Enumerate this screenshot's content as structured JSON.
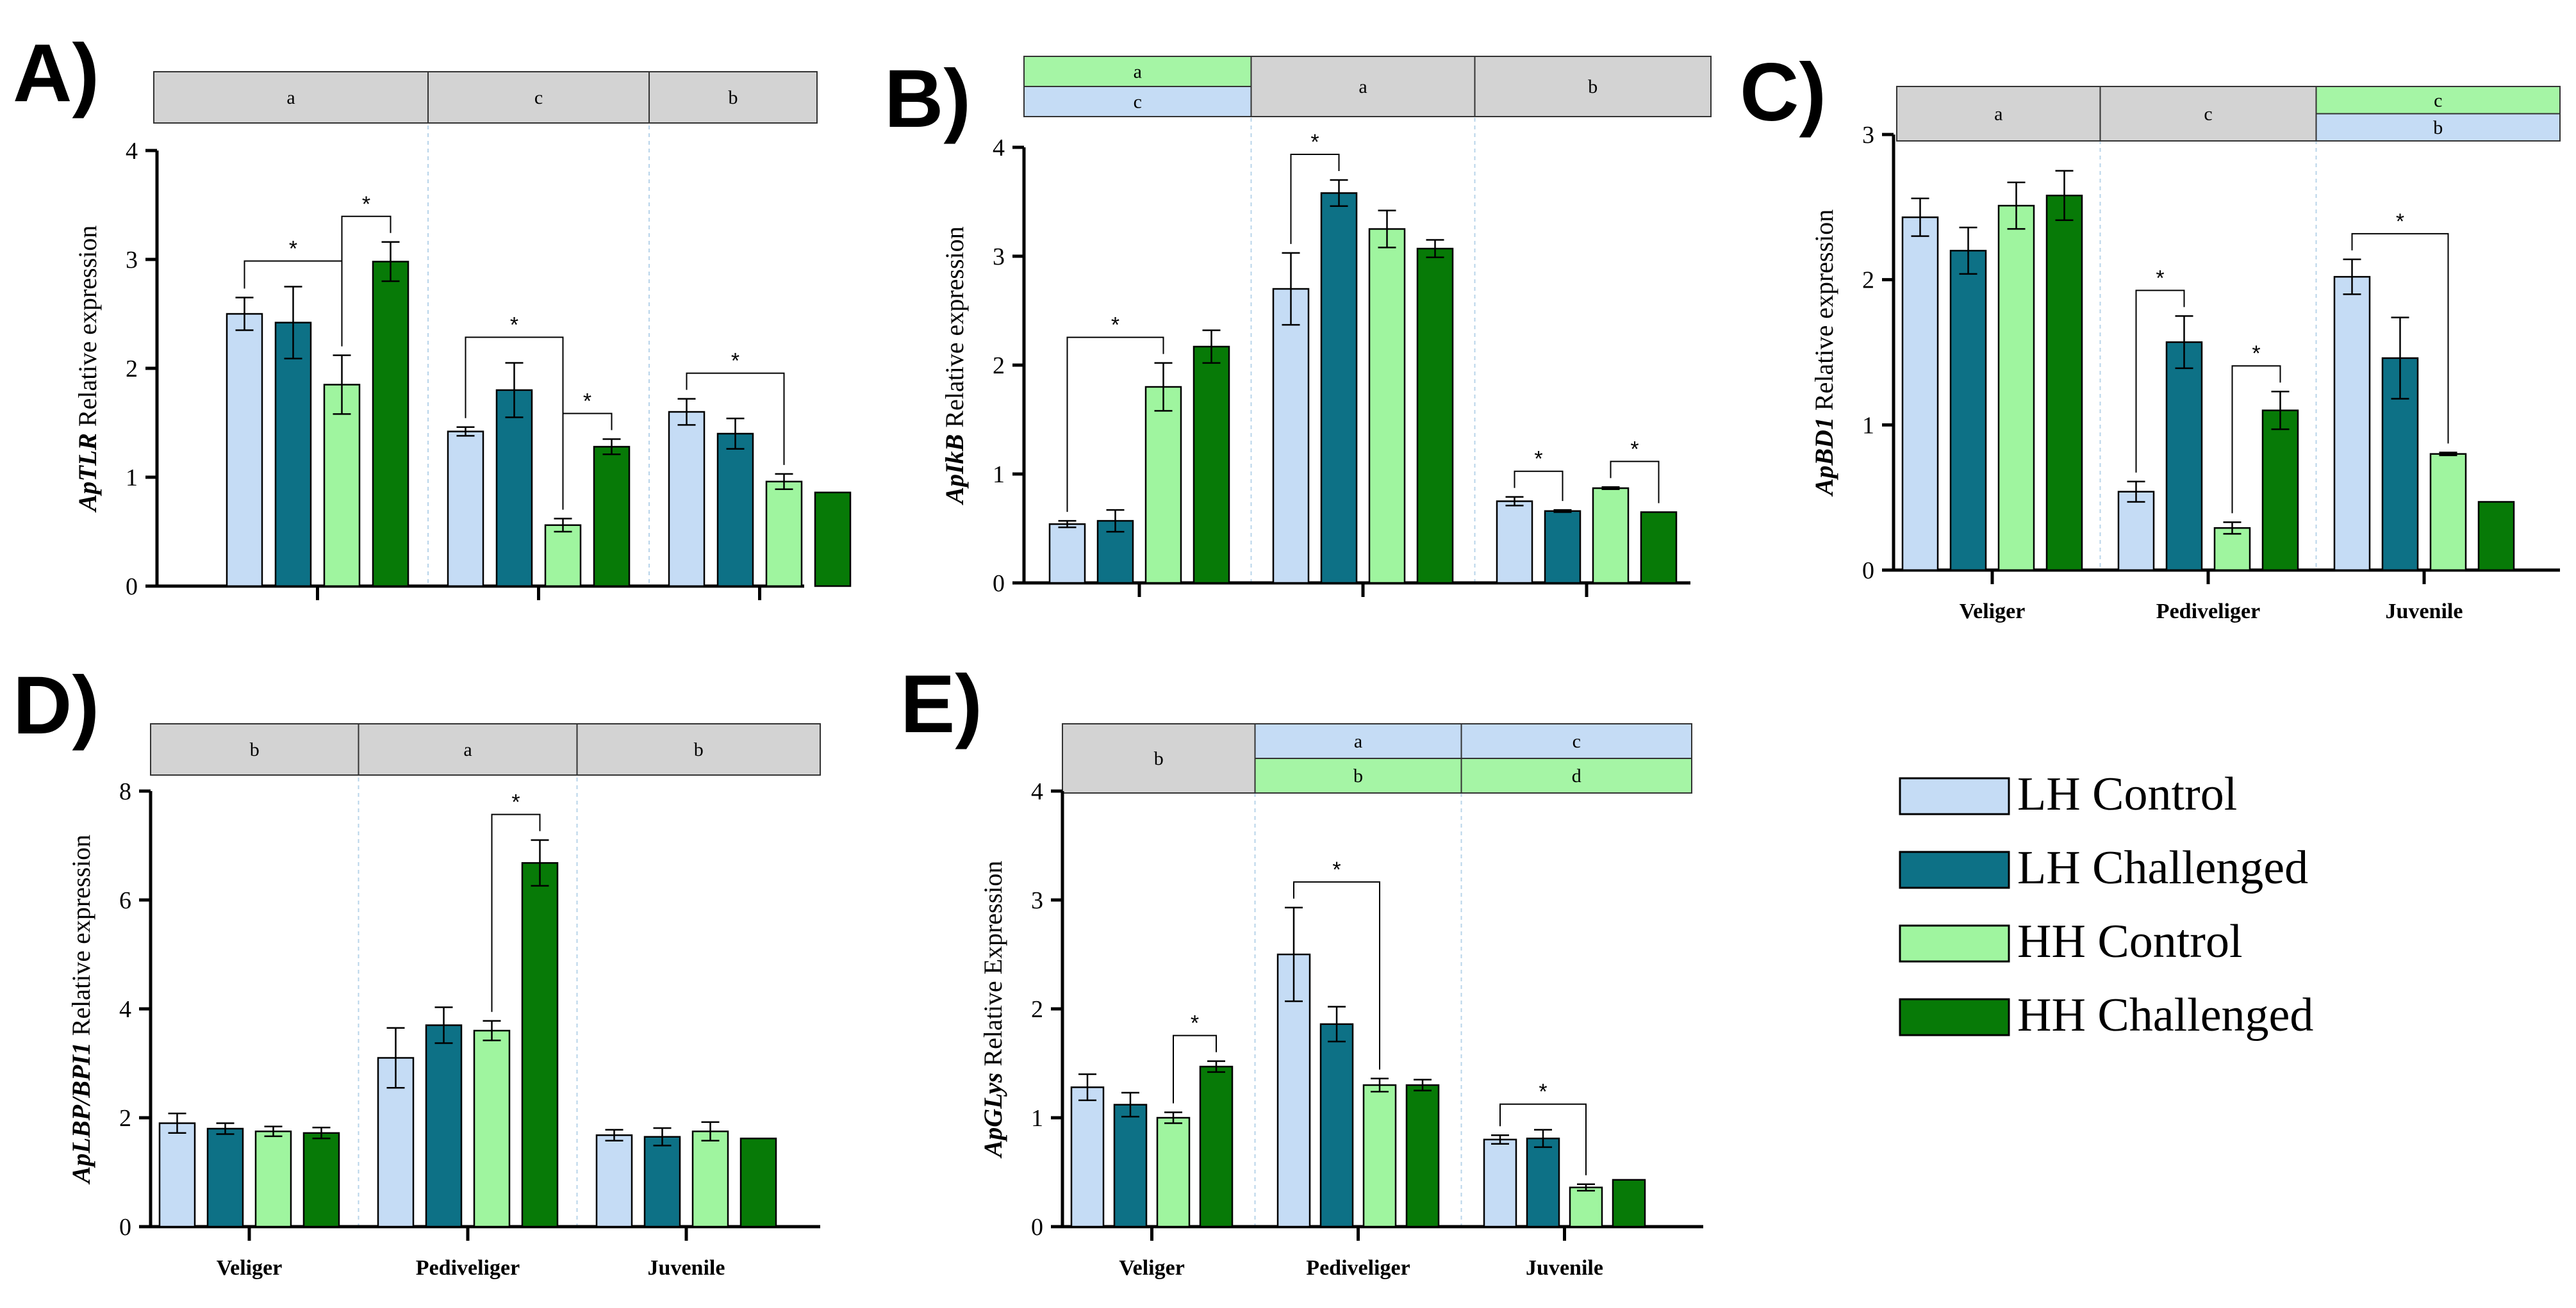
{
  "colors": {
    "LH Control": "#c5dcf5",
    "LH Challenged": "#0d7186",
    "HH Control": "#9ff59f",
    "HH Challenged": "#077a07",
    "box_gray": "#d3d3d3",
    "box_blue": "#c5dcf5",
    "box_green": "#a5f5a5",
    "divider": "#b8d4ea"
  },
  "legend": [
    {
      "label": "LH Control"
    },
    {
      "label": "LH Challenged"
    },
    {
      "label": "HH Control"
    },
    {
      "label": "HH Challenged"
    }
  ],
  "chart_data": [
    {
      "panel": "A)",
      "type": "bar",
      "gene": "ApTLR",
      "ylabel_rest": " Relative expression",
      "ylim": [
        0,
        4
      ],
      "yticks": [
        "0",
        "1",
        "2",
        "3",
        "4"
      ],
      "categories": [
        "",
        "",
        ""
      ],
      "series": [
        {
          "name": "LH Control",
          "values": [
            2.5,
            1.42,
            1.6
          ],
          "errors": [
            0.15,
            0.04,
            0.12
          ]
        },
        {
          "name": "LH Challenged",
          "values": [
            2.42,
            1.8,
            1.4
          ],
          "errors": [
            0.33,
            0.25,
            0.14
          ]
        },
        {
          "name": "HH Control",
          "values": [
            1.85,
            0.56,
            0.96
          ],
          "errors": [
            0.27,
            0.06,
            0.07
          ]
        },
        {
          "name": "HH Challenged",
          "values": [
            2.98,
            1.28,
            0.86
          ],
          "errors": [
            0.18,
            0.07,
            0.0
          ]
        }
      ],
      "letters": [
        [
          {
            "text": "a",
            "color": "gray"
          }
        ],
        [
          {
            "text": "c",
            "color": "gray"
          }
        ],
        [
          {
            "text": "b",
            "color": "gray"
          }
        ]
      ],
      "significance": [
        {
          "group": 0,
          "from": 0,
          "to": 2,
          "star": "*"
        },
        {
          "group": 0,
          "from": 2,
          "to": 3,
          "star": "*"
        },
        {
          "group": 1,
          "from": 0,
          "to": 2,
          "star": "*"
        },
        {
          "group": 1,
          "from": 2,
          "to": 3,
          "star": "*"
        },
        {
          "group": 2,
          "from": 0,
          "to": 2,
          "star": "*"
        }
      ]
    },
    {
      "panel": "B)",
      "type": "bar",
      "gene": "ApIkB",
      "ylabel_rest": " Relative expression",
      "ylim": [
        0,
        4
      ],
      "yticks": [
        "0",
        "1",
        "2",
        "3",
        "4"
      ],
      "categories": [
        "",
        "",
        ""
      ],
      "series": [
        {
          "name": "LH Control",
          "values": [
            0.54,
            2.7,
            0.75
          ],
          "errors": [
            0.03,
            0.33,
            0.04
          ]
        },
        {
          "name": "LH Challenged",
          "values": [
            0.57,
            3.58,
            0.66
          ],
          "errors": [
            0.1,
            0.12,
            0.01
          ]
        },
        {
          "name": "HH Control",
          "values": [
            1.8,
            3.25,
            0.87
          ],
          "errors": [
            0.22,
            0.17,
            0.01
          ]
        },
        {
          "name": "HH Challenged",
          "values": [
            2.17,
            3.07,
            0.65
          ],
          "errors": [
            0.15,
            0.08,
            0.0
          ]
        }
      ],
      "letters": [
        [
          {
            "text": "a",
            "color": "green"
          },
          {
            "text": "c",
            "color": "blue"
          }
        ],
        [
          {
            "text": "a",
            "color": "gray"
          }
        ],
        [
          {
            "text": "b",
            "color": "gray"
          }
        ]
      ],
      "significance": [
        {
          "group": 0,
          "from": 0,
          "to": 2,
          "star": "*"
        },
        {
          "group": 1,
          "from": 0,
          "to": 1,
          "star": "*"
        },
        {
          "group": 2,
          "from": 0,
          "to": 1,
          "star": "*"
        },
        {
          "group": 2,
          "from": 2,
          "to": 3,
          "star": "*"
        }
      ]
    },
    {
      "panel": "C)",
      "type": "bar",
      "gene": "ApBD1",
      "ylabel_rest": " Relative expression",
      "ylim": [
        0,
        3
      ],
      "yticks": [
        "0",
        "1",
        "2",
        "3"
      ],
      "categories": [
        "Veliger",
        "Pediveliger",
        "Juvenile"
      ],
      "series": [
        {
          "name": "LH Control",
          "values": [
            2.43,
            0.54,
            2.02
          ],
          "errors": [
            0.13,
            0.07,
            0.12
          ]
        },
        {
          "name": "LH Challenged",
          "values": [
            2.2,
            1.57,
            1.46
          ],
          "errors": [
            0.16,
            0.18,
            0.28
          ]
        },
        {
          "name": "HH Control",
          "values": [
            2.51,
            0.29,
            0.8
          ],
          "errors": [
            0.16,
            0.04,
            0.01
          ]
        },
        {
          "name": "HH Challenged",
          "values": [
            2.58,
            1.1,
            0.47
          ],
          "errors": [
            0.17,
            0.13,
            0.0
          ]
        }
      ],
      "letters": [
        [
          {
            "text": "a",
            "color": "gray"
          }
        ],
        [
          {
            "text": "c",
            "color": "gray"
          }
        ],
        [
          {
            "text": "c",
            "color": "green"
          },
          {
            "text": "b",
            "color": "blue"
          }
        ]
      ],
      "significance": [
        {
          "group": 1,
          "from": 0,
          "to": 1,
          "star": "*"
        },
        {
          "group": 1,
          "from": 2,
          "to": 3,
          "star": "*"
        },
        {
          "group": 2,
          "from": 0,
          "to": 2,
          "star": "*"
        }
      ]
    },
    {
      "panel": "D)",
      "type": "bar",
      "gene": "ApLBP/BPI1",
      "ylabel_rest": " Relative expression",
      "ylim": [
        0,
        8
      ],
      "yticks": [
        "0",
        "2",
        "4",
        "6",
        "8"
      ],
      "categories": [
        "Veliger",
        "Pediveliger",
        "Juvenile"
      ],
      "series": [
        {
          "name": "LH Control",
          "values": [
            1.9,
            3.1,
            1.68
          ],
          "errors": [
            0.18,
            0.55,
            0.1
          ]
        },
        {
          "name": "LH Challenged",
          "values": [
            1.8,
            3.7,
            1.65
          ],
          "errors": [
            0.1,
            0.33,
            0.16
          ]
        },
        {
          "name": "HH Control",
          "values": [
            1.75,
            3.6,
            1.75
          ],
          "errors": [
            0.09,
            0.18,
            0.17
          ]
        },
        {
          "name": "HH Challenged",
          "values": [
            1.72,
            6.68,
            1.62
          ],
          "errors": [
            0.1,
            0.42,
            0.0
          ]
        }
      ],
      "letters": [
        [
          {
            "text": "b",
            "color": "gray"
          }
        ],
        [
          {
            "text": "a",
            "color": "gray"
          }
        ],
        [
          {
            "text": "b",
            "color": "gray"
          }
        ]
      ],
      "significance": [
        {
          "group": 1,
          "from": 2,
          "to": 3,
          "star": "*"
        }
      ]
    },
    {
      "panel": "E)",
      "type": "bar",
      "gene": "ApGLys",
      "ylabel_rest": " Relative Expression",
      "ylim": [
        0,
        4
      ],
      "yticks": [
        "0",
        "1",
        "2",
        "3",
        "4"
      ],
      "categories": [
        "Veliger",
        "Pediveliger",
        "Juvenile"
      ],
      "series": [
        {
          "name": "LH Control",
          "values": [
            1.28,
            2.5,
            0.8
          ],
          "errors": [
            0.12,
            0.43,
            0.04
          ]
        },
        {
          "name": "LH Challenged",
          "values": [
            1.12,
            1.86,
            0.81
          ],
          "errors": [
            0.11,
            0.16,
            0.08
          ]
        },
        {
          "name": "HH Control",
          "values": [
            1.0,
            1.3,
            0.36
          ],
          "errors": [
            0.05,
            0.06,
            0.03
          ]
        },
        {
          "name": "HH Challenged",
          "values": [
            1.47,
            1.3,
            0.43
          ],
          "errors": [
            0.05,
            0.05,
            0.0
          ]
        }
      ],
      "letters": [
        [
          {
            "text": "b",
            "color": "gray"
          }
        ],
        [
          {
            "text": "a",
            "color": "blue"
          },
          {
            "text": "b",
            "color": "green"
          }
        ],
        [
          {
            "text": "c",
            "color": "blue"
          },
          {
            "text": "d",
            "color": "green"
          }
        ]
      ],
      "significance": [
        {
          "group": 0,
          "from": 2,
          "to": 3,
          "star": "*"
        },
        {
          "group": 1,
          "from": 0,
          "to": 2,
          "star": "*"
        },
        {
          "group": 2,
          "from": 0,
          "to": 2,
          "star": "*"
        }
      ]
    }
  ]
}
